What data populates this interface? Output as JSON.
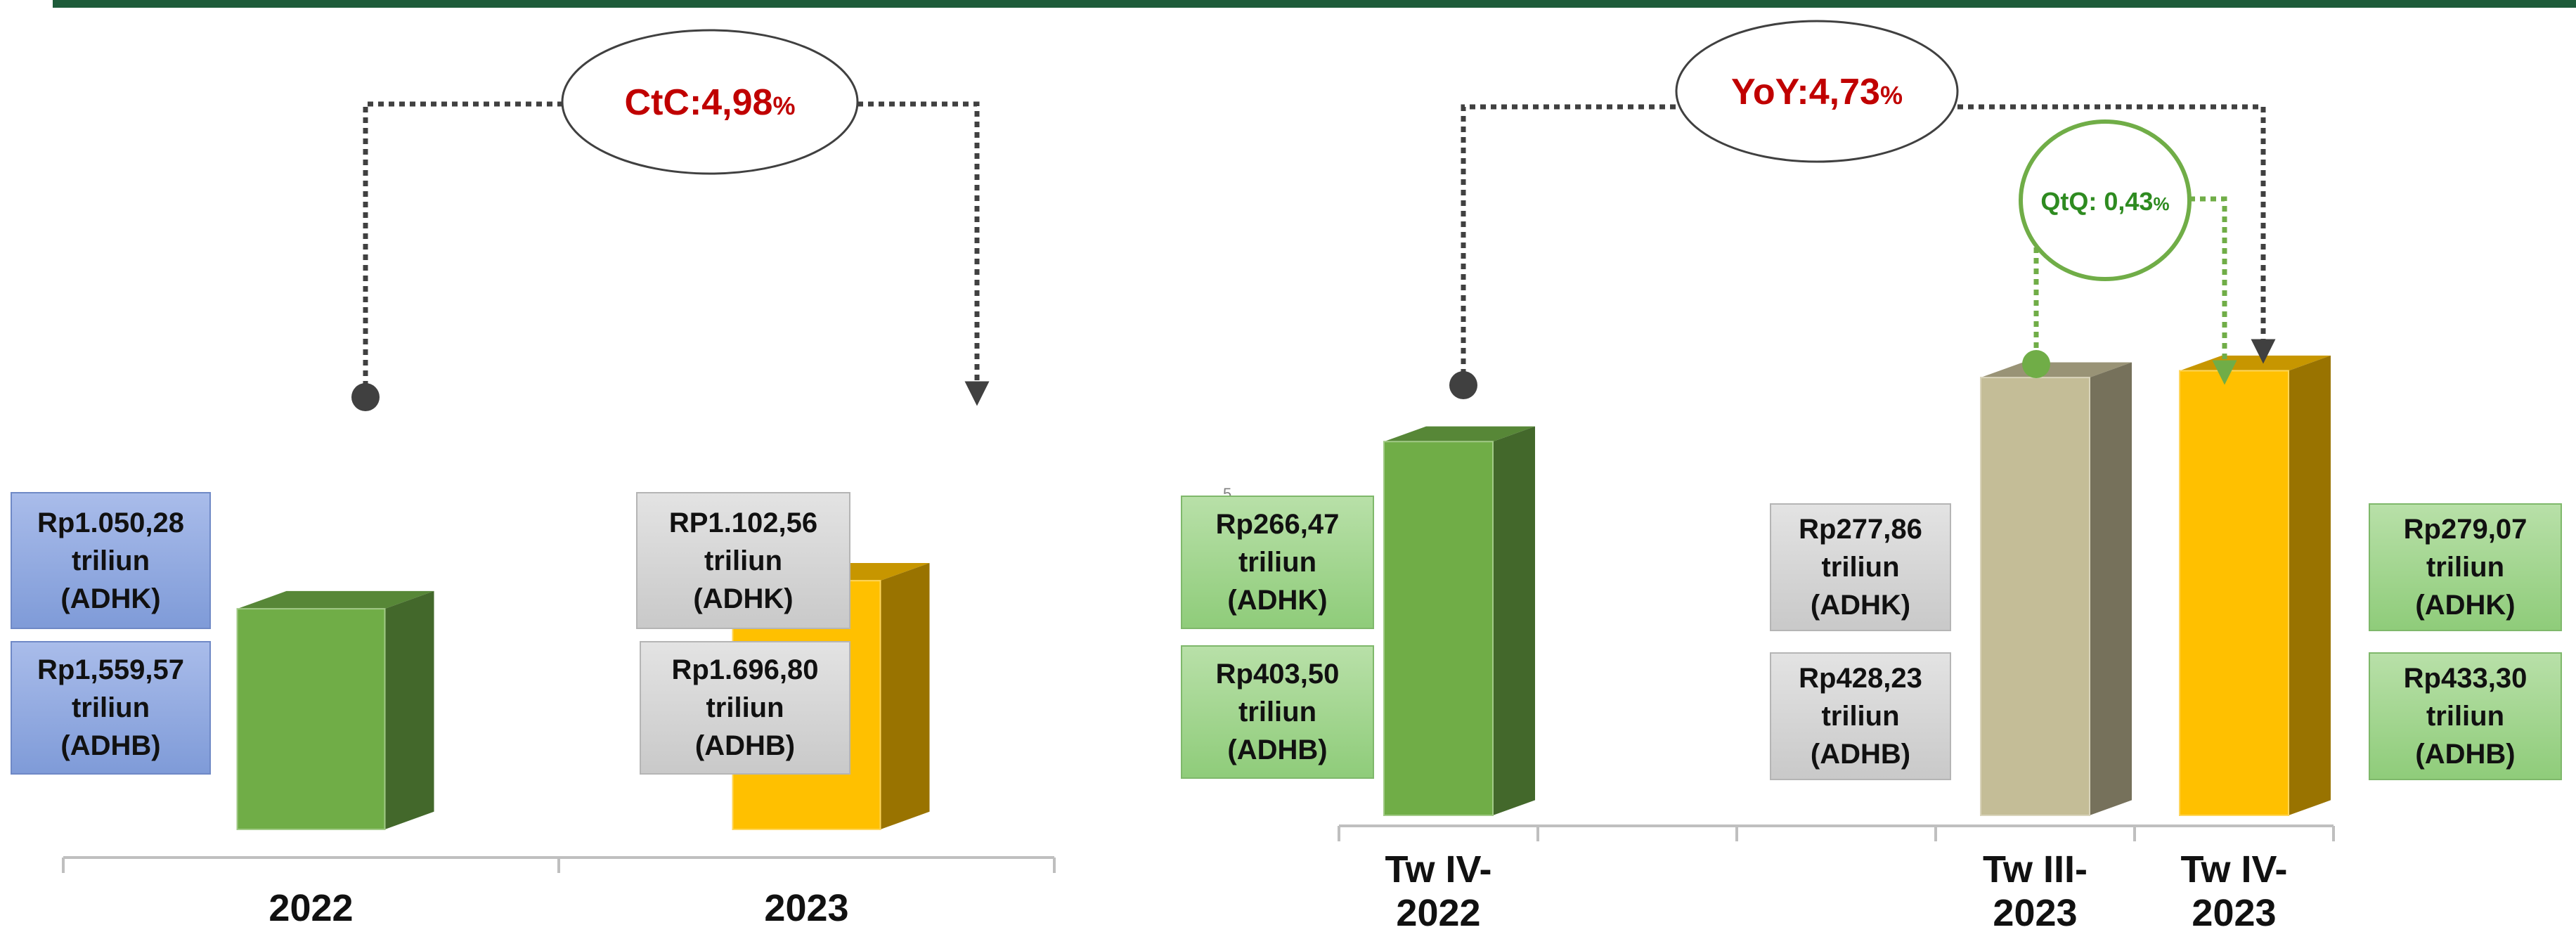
{
  "chart_data": [
    {
      "type": "bar",
      "categories": [
        "2022",
        "2023"
      ],
      "series": [
        {
          "values": [
            1050.28,
            1102.56
          ]
        }
      ],
      "colors": [
        "#70ad47",
        "#ffc000"
      ],
      "growth": {
        "label": "CtC:4,98",
        "suffix": "%"
      },
      "annotations": [
        {
          "adhk": "Rp1.050,28\ntriliun\n(ADHK)",
          "adhb": "Rp1,559,57\ntriliun\n(ADHB)",
          "style": "blue"
        },
        {
          "adhk": "RP1.102,56\ntriliun\n(ADHK)",
          "adhb": "Rp1.696,80\ntriliun\n(ADHB)",
          "style": "gray"
        }
      ]
    },
    {
      "type": "bar",
      "categories": [
        "Tw IV-\n2022",
        "",
        "",
        "Tw III-\n2023",
        "Tw IV-\n2023"
      ],
      "series": [
        {
          "values": [
            266.47,
            null,
            null,
            277.86,
            279.07
          ]
        }
      ],
      "colors": [
        "#70ad47",
        null,
        null,
        "#c4bd97",
        "#ffc000"
      ],
      "growth": {
        "label": "YoY:4,73",
        "suffix": "%"
      },
      "qtq": {
        "label": "QtQ: 0,43",
        "suffix": "%"
      },
      "annotations": [
        {
          "adhk": "Rp266,47\ntriliun\n(ADHK)",
          "adhb": "Rp403,50\ntriliun\n(ADHB)",
          "style": "green"
        },
        {
          "adhk": "Rp277,86\ntriliun\n(ADHK)",
          "adhb": "Rp428,23\ntriliun\n(ADHB)",
          "style": "gray"
        },
        {
          "adhk": "Rp279,07\ntriliun\n(ADHK)",
          "adhb": "Rp433,30\ntriliun\n(ADHB)",
          "style": "green"
        }
      ],
      "stray_mark": "5"
    }
  ]
}
